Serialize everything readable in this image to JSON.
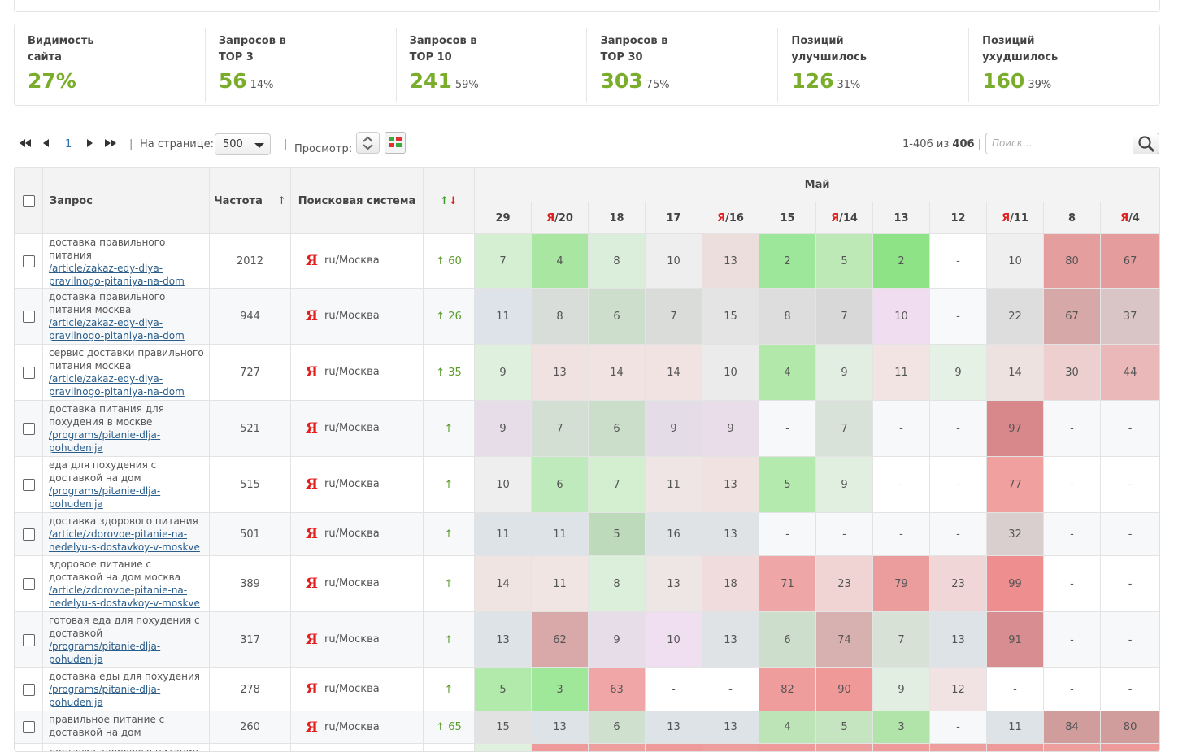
{
  "stats": [
    {
      "label": "Видимость сайта",
      "value": "27%",
      "pct": ""
    },
    {
      "label": "Запросов в TOP 3",
      "value": "56",
      "pct": "14%"
    },
    {
      "label": "Запросов в TOP 10",
      "value": "241",
      "pct": "59%"
    },
    {
      "label": "Запросов в TOP 30",
      "value": "303",
      "pct": "75%"
    },
    {
      "label": "Позиций улучшилось",
      "value": "126",
      "pct": "31%"
    },
    {
      "label": "Позиций ухудшилось",
      "value": "160",
      "pct": "39%"
    }
  ],
  "pager": {
    "current_page": "1",
    "per_page_label": "На странице:",
    "per_page_value": "500",
    "view_label": "Просмотр:",
    "range_text": "1-406 из",
    "total": "406",
    "search_placeholder": "Поиск..."
  },
  "table": {
    "headers": {
      "query": "Запрос",
      "freq": "Частота",
      "freq_sort": "↑",
      "engine": "Поисковая система",
      "dyn_up": "↑",
      "dyn_down": "↓",
      "month": "Май"
    },
    "dates": [
      {
        "prefix": "",
        "label": "29"
      },
      {
        "prefix": "Я",
        "label": "/20"
      },
      {
        "prefix": "",
        "label": "18"
      },
      {
        "prefix": "",
        "label": "17"
      },
      {
        "prefix": "Я",
        "label": "/16"
      },
      {
        "prefix": "",
        "label": "15"
      },
      {
        "prefix": "Я",
        "label": "/14"
      },
      {
        "prefix": "",
        "label": "13"
      },
      {
        "prefix": "",
        "label": "12"
      },
      {
        "prefix": "Я",
        "label": "/11"
      },
      {
        "prefix": "",
        "label": "8"
      },
      {
        "prefix": "Я",
        "label": "/4"
      }
    ],
    "engine_logo": "Я",
    "rows": [
      {
        "query": "доставка правильного питания",
        "url": "/article/zakaz-edy-dlya-pravilnogo-pitaniya-na-dom",
        "freq": "2012",
        "engine": "ru/Москва",
        "dyn": "↑ 60",
        "pos": [
          "7",
          "4",
          "8",
          "10",
          "13",
          "2",
          "5",
          "2",
          "-",
          "10",
          "80",
          "67"
        ],
        "colors": [
          "#d5efd3",
          "#a9e6a2",
          "#dbeedb",
          "#eeeeee",
          "#ecdedd",
          "#9de79a",
          "#bde9b6",
          "#8ee387",
          "#ffffff",
          "#efefef",
          "#e59e9e",
          "#e59c9c"
        ]
      },
      {
        "query": "доставка правильного питания москва",
        "url": "/article/zakaz-edy-dlya-pravilnogo-pitaniya-na-dom",
        "freq": "944",
        "engine": "ru/Москва",
        "dyn": "↑ 26",
        "pos": [
          "11",
          "8",
          "6",
          "7",
          "15",
          "8",
          "7",
          "10",
          "-",
          "22",
          "67",
          "37"
        ],
        "colors": [
          "#dde3e8",
          "#d9ddd9",
          "#cddfcc",
          "#dadcd9",
          "#e4e4e4",
          "#dddddd",
          "#d8d8d8",
          "#f1ddf0",
          "#f7f9fb",
          "#dddddd",
          "#d6a8a8",
          "#d9c5c5"
        ]
      },
      {
        "query": "сервис доставки правильного питания москва",
        "url": "/article/zakaz-edy-dlya-pravilnogo-pitaniya-na-dom",
        "freq": "727",
        "engine": "ru/Москва",
        "dyn": "↑ 35",
        "pos": [
          "9",
          "13",
          "14",
          "14",
          "10",
          "4",
          "9",
          "11",
          "9",
          "14",
          "30",
          "44"
        ],
        "colors": [
          "#e0f0df",
          "#f0e2e1",
          "#f1e3e2",
          "#f0e3e2",
          "#ebebeb",
          "#b2e9ab",
          "#e1eee1",
          "#f1e4e3",
          "#e4f1e4",
          "#eee2e1",
          "#edcfcf",
          "#eab8b8"
        ]
      },
      {
        "query": "доставка питания для похудения в москве",
        "url": "/programs/pitanie-dlja-pohudenija",
        "freq": "521",
        "engine": "ru/Москва",
        "dyn": "↑",
        "pos": [
          "9",
          "7",
          "6",
          "9",
          "9",
          "-",
          "7",
          "-",
          "-",
          "97",
          "-",
          "-"
        ],
        "colors": [
          "#e6dde9",
          "#d3dfd2",
          "#cbdeca",
          "#e4dde7",
          "#e8dde9",
          "#f6f8fa",
          "#d8e2d8",
          "#f6f8fa",
          "#f6f8fa",
          "#d8888a",
          "#f6f8fa",
          "#f6f8fa"
        ]
      },
      {
        "query": "еда для похудения с доставкой на дом",
        "url": "/programs/pitanie-dlja-pohudenija",
        "freq": "515",
        "engine": "ru/Москва",
        "dyn": "↑",
        "pos": [
          "10",
          "6",
          "7",
          "11",
          "13",
          "5",
          "9",
          "-",
          "-",
          "77",
          "-",
          "-"
        ],
        "colors": [
          "#eeeeee",
          "#bfeabb",
          "#d3efd0",
          "#efe5e4",
          "#efe2e1",
          "#b4eaae",
          "#e1efe0",
          "#ffffff",
          "#ffffff",
          "#f1a0a0",
          "#ffffff",
          "#ffffff"
        ]
      },
      {
        "query": "доставка здорового питания",
        "url": "/article/zdorovoe-pitanie-na-nedelyu-s-dostavkoy-v-moskve",
        "freq": "501",
        "engine": "ru/Москва",
        "dyn": "↑",
        "pos": [
          "11",
          "11",
          "5",
          "16",
          "13",
          "-",
          "-",
          "-",
          "-",
          "32",
          "-",
          "-"
        ],
        "colors": [
          "#dde3e7",
          "#dde3e7",
          "#bddbba",
          "#dfe3e6",
          "#dfe3e6",
          "#f6f8fa",
          "#f6f8fa",
          "#f6f8fa",
          "#f6f8fa",
          "#dacfcf",
          "#f6f8fa",
          "#f6f8fa"
        ]
      },
      {
        "query": "здоровое питание с доставкой на дом москва",
        "url": "/article/zdorovoe-pitanie-na-nedelyu-s-dostavkoy-v-moskve",
        "freq": "389",
        "engine": "ru/Москва",
        "dyn": "↑",
        "pos": [
          "14",
          "11",
          "8",
          "13",
          "18",
          "71",
          "23",
          "79",
          "23",
          "99",
          "-",
          "-"
        ],
        "colors": [
          "#f0e4e3",
          "#f1e5e4",
          "#dcefda",
          "#eee6e5",
          "#f0dcdc",
          "#eea6a6",
          "#f0d4d4",
          "#eb9c9c",
          "#f0d6d6",
          "#ef8e8e",
          "#ffffff",
          "#ffffff"
        ]
      },
      {
        "query": "готовая еда для похудения с доставкой",
        "url": "/programs/pitanie-dlja-pohudenija",
        "freq": "317",
        "engine": "ru/Москва",
        "dyn": "↑",
        "pos": [
          "13",
          "62",
          "9",
          "10",
          "13",
          "6",
          "74",
          "7",
          "13",
          "91",
          "-",
          "-"
        ],
        "colors": [
          "#dde3e7",
          "#d9a9a9",
          "#e6dde8",
          "#efdff0",
          "#dfe3e6",
          "#cddfcc",
          "#d7b0b0",
          "#d7e1d6",
          "#dde3e7",
          "#d88e90",
          "#f6f8fa",
          "#f6f8fa"
        ]
      },
      {
        "query": "доставка еды для похудения",
        "url": "/programs/pitanie-dlja-pohudenija",
        "freq": "278",
        "engine": "ru/Москва",
        "dyn": "↑",
        "pos": [
          "5",
          "3",
          "63",
          "-",
          "-",
          "82",
          "90",
          "9",
          "12",
          "-",
          "-",
          "-"
        ],
        "colors": [
          "#b2eaac",
          "#a0e899",
          "#f0a6a6",
          "#ffffff",
          "#ffffff",
          "#ef9c9c",
          "#ef9999",
          "#e2eee1",
          "#f1e3e3",
          "#ffffff",
          "#ffffff",
          "#ffffff"
        ]
      },
      {
        "query": "правильное питание с доставкой на дом",
        "url": "",
        "freq": "260",
        "engine": "ru/Москва",
        "dyn": "↑ 65",
        "pos": [
          "15",
          "13",
          "6",
          "13",
          "13",
          "4",
          "5",
          "3",
          "-",
          "11",
          "84",
          "80"
        ],
        "colors": [
          "#e2e2e2",
          "#dde3e7",
          "#cfe0ce",
          "#dde3e7",
          "#dde3e7",
          "#bde4b7",
          "#c4e5bf",
          "#b0e4a9",
          "#f6f8fa",
          "#dde3e7",
          "#d09c9c",
          "#d09c9c"
        ]
      },
      {
        "query": "доставка здорового питания",
        "url": "",
        "freq": "",
        "engine": "",
        "dyn": "",
        "pos": [
          "",
          "",
          "",
          "",
          "",
          "",
          "",
          "",
          "",
          "",
          "",
          ""
        ],
        "colors": [
          "#dff0de",
          "#ef9a9a",
          "#ef9e9e",
          "#ef9a9a",
          "#ef9e9e",
          "#ef9a9a",
          "#ef9e9e",
          "#ef9a9a",
          "#ef9e9e",
          "#ef9a9a",
          "#ef9e9e",
          "#ef9a9a"
        ]
      }
    ]
  }
}
